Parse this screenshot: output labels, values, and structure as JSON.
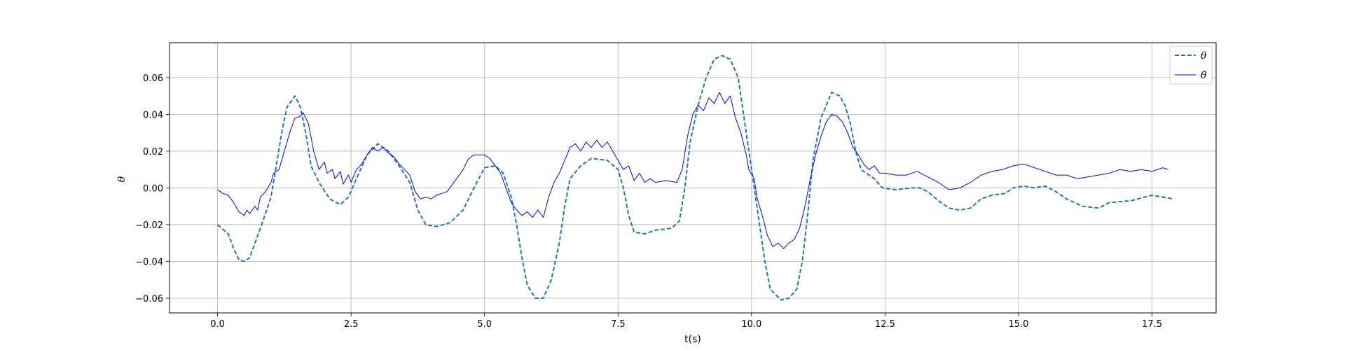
{
  "chart_data": {
    "type": "line",
    "title": "",
    "xlabel": "t(s)",
    "ylabel": "θ",
    "xlim": [
      -0.9,
      18.7
    ],
    "ylim": [
      -0.068,
      0.079
    ],
    "xticks": [
      0.0,
      2.5,
      5.0,
      7.5,
      10.0,
      12.5,
      15.0,
      17.5
    ],
    "xtick_labels": [
      "0.0",
      "2.5",
      "5.0",
      "7.5",
      "10.0",
      "12.5",
      "15.0",
      "17.5"
    ],
    "yticks": [
      -0.06,
      -0.04,
      -0.02,
      0.0,
      0.02,
      0.04,
      0.06
    ],
    "ytick_labels": [
      "−0.06",
      "−0.04",
      "−0.02",
      "0.00",
      "0.02",
      "0.04",
      "0.06"
    ],
    "grid": true,
    "legend_position": "top-right",
    "series": [
      {
        "name": "θ",
        "style": "dashed",
        "color": "#1f77b4",
        "points": [
          [
            0.0,
            -0.02
          ],
          [
            0.2,
            -0.025
          ],
          [
            0.3,
            -0.033
          ],
          [
            0.4,
            -0.039
          ],
          [
            0.5,
            -0.04
          ],
          [
            0.6,
            -0.038
          ],
          [
            0.7,
            -0.03
          ],
          [
            0.85,
            -0.018
          ],
          [
            1.0,
            -0.005
          ],
          [
            1.1,
            0.012
          ],
          [
            1.2,
            0.03
          ],
          [
            1.3,
            0.044
          ],
          [
            1.45,
            0.05
          ],
          [
            1.55,
            0.044
          ],
          [
            1.65,
            0.03
          ],
          [
            1.75,
            0.012
          ],
          [
            1.9,
            0.003
          ],
          [
            2.1,
            -0.006
          ],
          [
            2.3,
            -0.009
          ],
          [
            2.45,
            -0.005
          ],
          [
            2.6,
            0.005
          ],
          [
            2.8,
            0.018
          ],
          [
            3.0,
            0.024
          ],
          [
            3.2,
            0.02
          ],
          [
            3.4,
            0.012
          ],
          [
            3.6,
            0.003
          ],
          [
            3.75,
            -0.012
          ],
          [
            3.9,
            -0.02
          ],
          [
            4.1,
            -0.021
          ],
          [
            4.35,
            -0.019
          ],
          [
            4.6,
            -0.012
          ],
          [
            4.8,
            0.0
          ],
          [
            5.0,
            0.011
          ],
          [
            5.2,
            0.012
          ],
          [
            5.35,
            0.008
          ],
          [
            5.5,
            -0.005
          ],
          [
            5.6,
            -0.02
          ],
          [
            5.7,
            -0.038
          ],
          [
            5.8,
            -0.053
          ],
          [
            5.95,
            -0.06
          ],
          [
            6.1,
            -0.06
          ],
          [
            6.25,
            -0.05
          ],
          [
            6.4,
            -0.03
          ],
          [
            6.5,
            -0.01
          ],
          [
            6.6,
            0.005
          ],
          [
            6.8,
            0.012
          ],
          [
            7.0,
            0.016
          ],
          [
            7.3,
            0.015
          ],
          [
            7.5,
            0.01
          ],
          [
            7.6,
            0.0
          ],
          [
            7.7,
            -0.015
          ],
          [
            7.8,
            -0.024
          ],
          [
            8.0,
            -0.025
          ],
          [
            8.2,
            -0.023
          ],
          [
            8.5,
            -0.022
          ],
          [
            8.65,
            -0.018
          ],
          [
            8.75,
            0.0
          ],
          [
            8.85,
            0.025
          ],
          [
            9.0,
            0.045
          ],
          [
            9.15,
            0.06
          ],
          [
            9.3,
            0.07
          ],
          [
            9.45,
            0.072
          ],
          [
            9.6,
            0.07
          ],
          [
            9.75,
            0.06
          ],
          [
            9.85,
            0.04
          ],
          [
            9.95,
            0.02
          ],
          [
            10.05,
            0.0
          ],
          [
            10.15,
            -0.02
          ],
          [
            10.25,
            -0.04
          ],
          [
            10.35,
            -0.055
          ],
          [
            10.55,
            -0.061
          ],
          [
            10.7,
            -0.06
          ],
          [
            10.85,
            -0.055
          ],
          [
            10.95,
            -0.04
          ],
          [
            11.05,
            -0.015
          ],
          [
            11.15,
            0.015
          ],
          [
            11.3,
            0.038
          ],
          [
            11.5,
            0.052
          ],
          [
            11.65,
            0.05
          ],
          [
            11.75,
            0.045
          ],
          [
            11.85,
            0.035
          ],
          [
            11.95,
            0.02
          ],
          [
            12.05,
            0.01
          ],
          [
            12.3,
            0.005
          ],
          [
            12.45,
            0.0
          ],
          [
            12.7,
            -0.001
          ],
          [
            13.0,
            0.0
          ],
          [
            13.15,
            0.0
          ],
          [
            13.3,
            -0.002
          ],
          [
            13.5,
            -0.007
          ],
          [
            13.7,
            -0.011
          ],
          [
            13.9,
            -0.012
          ],
          [
            14.1,
            -0.011
          ],
          [
            14.3,
            -0.006
          ],
          [
            14.5,
            -0.004
          ],
          [
            14.75,
            -0.003
          ],
          [
            14.9,
            0.0
          ],
          [
            15.1,
            0.001
          ],
          [
            15.3,
            0.0
          ],
          [
            15.5,
            0.001
          ],
          [
            15.7,
            -0.002
          ],
          [
            15.9,
            -0.006
          ],
          [
            16.2,
            -0.01
          ],
          [
            16.5,
            -0.011
          ],
          [
            16.7,
            -0.008
          ],
          [
            17.1,
            -0.007
          ],
          [
            17.5,
            -0.004
          ],
          [
            17.9,
            -0.006
          ]
        ]
      },
      {
        "name": "θ̂",
        "style": "solid",
        "color": "#0000ff",
        "points": [
          [
            0.0,
            -0.001
          ],
          [
            0.1,
            -0.003
          ],
          [
            0.2,
            -0.004
          ],
          [
            0.3,
            -0.008
          ],
          [
            0.4,
            -0.013
          ],
          [
            0.5,
            -0.015
          ],
          [
            0.55,
            -0.012
          ],
          [
            0.6,
            -0.014
          ],
          [
            0.7,
            -0.01
          ],
          [
            0.75,
            -0.012
          ],
          [
            0.8,
            -0.005
          ],
          [
            0.9,
            -0.002
          ],
          [
            1.0,
            0.003
          ],
          [
            1.05,
            0.008
          ],
          [
            1.15,
            0.01
          ],
          [
            1.25,
            0.02
          ],
          [
            1.35,
            0.03
          ],
          [
            1.45,
            0.038
          ],
          [
            1.55,
            0.039
          ],
          [
            1.6,
            0.041
          ],
          [
            1.7,
            0.035
          ],
          [
            1.8,
            0.02
          ],
          [
            1.9,
            0.01
          ],
          [
            2.0,
            0.014
          ],
          [
            2.05,
            0.008
          ],
          [
            2.15,
            0.01
          ],
          [
            2.2,
            0.005
          ],
          [
            2.3,
            0.009
          ],
          [
            2.35,
            0.002
          ],
          [
            2.45,
            0.007
          ],
          [
            2.5,
            0.003
          ],
          [
            2.6,
            0.01
          ],
          [
            2.7,
            0.013
          ],
          [
            2.8,
            0.018
          ],
          [
            2.9,
            0.022
          ],
          [
            3.0,
            0.02
          ],
          [
            3.1,
            0.022
          ],
          [
            3.2,
            0.019
          ],
          [
            3.3,
            0.017
          ],
          [
            3.4,
            0.013
          ],
          [
            3.5,
            0.01
          ],
          [
            3.6,
            0.007
          ],
          [
            3.7,
            -0.002
          ],
          [
            3.8,
            -0.006
          ],
          [
            3.9,
            -0.005
          ],
          [
            4.0,
            -0.006
          ],
          [
            4.1,
            -0.004
          ],
          [
            4.2,
            -0.003
          ],
          [
            4.3,
            -0.002
          ],
          [
            4.45,
            0.004
          ],
          [
            4.6,
            0.01
          ],
          [
            4.7,
            0.016
          ],
          [
            4.8,
            0.018
          ],
          [
            5.0,
            0.018
          ],
          [
            5.1,
            0.016
          ],
          [
            5.2,
            0.012
          ],
          [
            5.3,
            0.008
          ],
          [
            5.4,
            0.0
          ],
          [
            5.5,
            -0.008
          ],
          [
            5.6,
            -0.012
          ],
          [
            5.7,
            -0.015
          ],
          [
            5.8,
            -0.013
          ],
          [
            5.9,
            -0.016
          ],
          [
            6.0,
            -0.012
          ],
          [
            6.1,
            -0.016
          ],
          [
            6.2,
            -0.005
          ],
          [
            6.3,
            0.003
          ],
          [
            6.4,
            0.008
          ],
          [
            6.5,
            0.015
          ],
          [
            6.6,
            0.022
          ],
          [
            6.7,
            0.024
          ],
          [
            6.8,
            0.02
          ],
          [
            6.9,
            0.025
          ],
          [
            7.0,
            0.022
          ],
          [
            7.1,
            0.026
          ],
          [
            7.2,
            0.022
          ],
          [
            7.3,
            0.025
          ],
          [
            7.4,
            0.02
          ],
          [
            7.5,
            0.015
          ],
          [
            7.6,
            0.01
          ],
          [
            7.7,
            0.012
          ],
          [
            7.8,
            0.004
          ],
          [
            7.9,
            0.008
          ],
          [
            8.0,
            0.003
          ],
          [
            8.1,
            0.005
          ],
          [
            8.2,
            0.003
          ],
          [
            8.4,
            0.004
          ],
          [
            8.6,
            0.003
          ],
          [
            8.7,
            0.01
          ],
          [
            8.8,
            0.028
          ],
          [
            8.9,
            0.04
          ],
          [
            9.0,
            0.045
          ],
          [
            9.1,
            0.042
          ],
          [
            9.2,
            0.049
          ],
          [
            9.3,
            0.046
          ],
          [
            9.4,
            0.052
          ],
          [
            9.5,
            0.046
          ],
          [
            9.6,
            0.05
          ],
          [
            9.7,
            0.038
          ],
          [
            9.8,
            0.03
          ],
          [
            9.9,
            0.018
          ],
          [
            9.95,
            0.01
          ],
          [
            10.05,
            0.005
          ],
          [
            10.1,
            -0.005
          ],
          [
            10.2,
            -0.015
          ],
          [
            10.3,
            -0.026
          ],
          [
            10.4,
            -0.032
          ],
          [
            10.5,
            -0.03
          ],
          [
            10.6,
            -0.033
          ],
          [
            10.7,
            -0.03
          ],
          [
            10.8,
            -0.028
          ],
          [
            10.9,
            -0.022
          ],
          [
            11.0,
            -0.01
          ],
          [
            11.1,
            0.005
          ],
          [
            11.2,
            0.018
          ],
          [
            11.3,
            0.028
          ],
          [
            11.4,
            0.036
          ],
          [
            11.5,
            0.04
          ],
          [
            11.6,
            0.039
          ],
          [
            11.7,
            0.036
          ],
          [
            11.8,
            0.03
          ],
          [
            11.9,
            0.022
          ],
          [
            12.0,
            0.018
          ],
          [
            12.1,
            0.013
          ],
          [
            12.2,
            0.01
          ],
          [
            12.3,
            0.012
          ],
          [
            12.4,
            0.008
          ],
          [
            12.5,
            0.008
          ],
          [
            12.7,
            0.007
          ],
          [
            12.9,
            0.007
          ],
          [
            13.1,
            0.009
          ],
          [
            13.3,
            0.006
          ],
          [
            13.5,
            0.003
          ],
          [
            13.7,
            -0.001
          ],
          [
            13.9,
            0.0
          ],
          [
            14.1,
            0.003
          ],
          [
            14.3,
            0.007
          ],
          [
            14.5,
            0.009
          ],
          [
            14.7,
            0.01
          ],
          [
            14.9,
            0.012
          ],
          [
            15.1,
            0.013
          ],
          [
            15.3,
            0.011
          ],
          [
            15.5,
            0.009
          ],
          [
            15.7,
            0.007
          ],
          [
            15.9,
            0.007
          ],
          [
            16.1,
            0.005
          ],
          [
            16.3,
            0.006
          ],
          [
            16.5,
            0.007
          ],
          [
            16.7,
            0.008
          ],
          [
            16.9,
            0.01
          ],
          [
            17.1,
            0.009
          ],
          [
            17.3,
            0.01
          ],
          [
            17.5,
            0.009
          ],
          [
            17.7,
            0.011
          ],
          [
            17.8,
            0.01
          ]
        ]
      }
    ]
  }
}
